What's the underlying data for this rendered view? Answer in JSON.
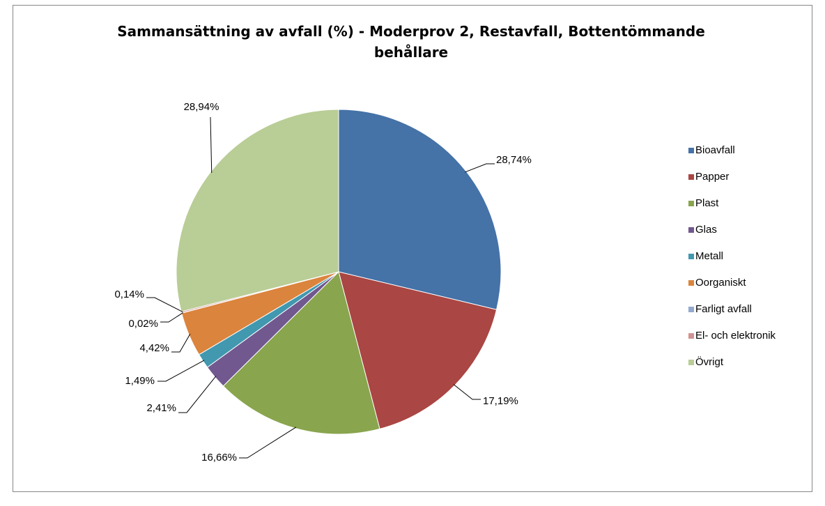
{
  "chart_data": {
    "type": "pie",
    "title": "Sammansättning av avfall (%) - Moderprov 2, Restavfall, Bottentömmande behållare",
    "categories": [
      "Bioavfall",
      "Papper",
      "Plast",
      "Glas",
      "Metall",
      "Oorganiskt",
      "Farligt avfall",
      "El- och elektronik",
      "Övrigt"
    ],
    "values": [
      28.74,
      17.19,
      16.66,
      2.41,
      1.49,
      4.42,
      0.02,
      0.14,
      28.94
    ],
    "value_labels": [
      "28,74%",
      "17,19%",
      "16,66%",
      "2,41%",
      "1,49%",
      "4,42%",
      "0,02%",
      "0,14%",
      "28,94%"
    ],
    "colors": [
      "#4572a7",
      "#aa4643",
      "#89a54e",
      "#71588f",
      "#4198af",
      "#db843d",
      "#93a9cf",
      "#d19392",
      "#b9cd96"
    ],
    "legend": "right"
  }
}
